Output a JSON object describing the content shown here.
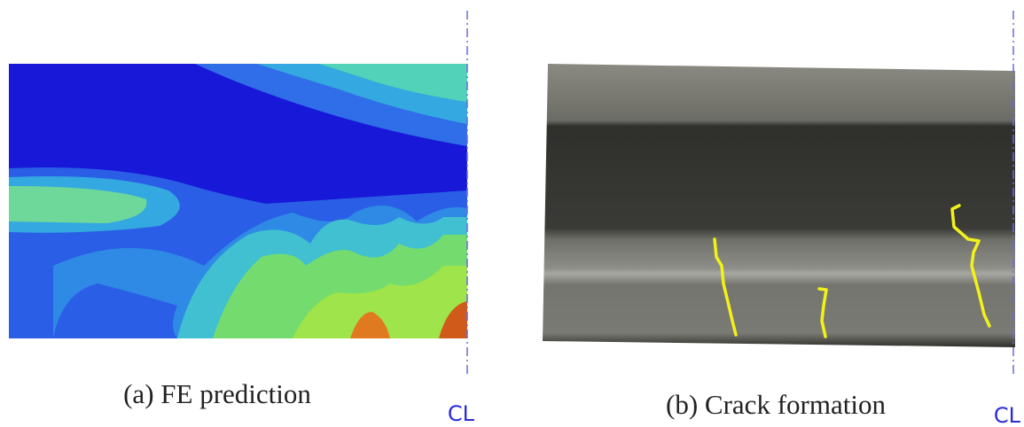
{
  "panels": [
    {
      "caption": "(a) FE prediction",
      "centerline_label": "CL"
    },
    {
      "caption": "(b) Crack formation",
      "centerline_label": "CL"
    }
  ]
}
